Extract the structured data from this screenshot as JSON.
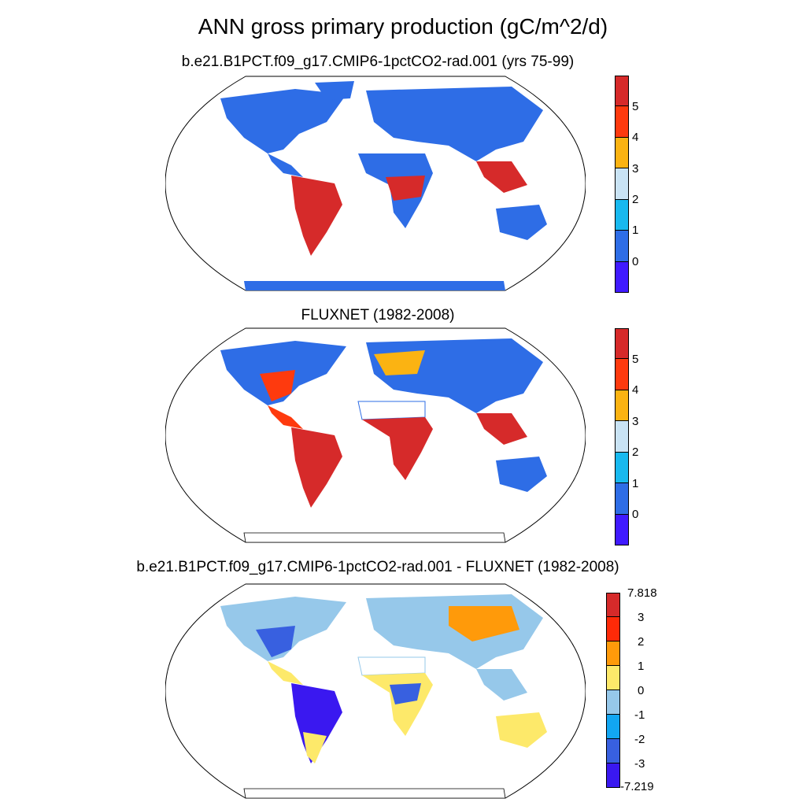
{
  "title": "ANN gross primary production (gC/m^2/d)",
  "panels": [
    {
      "title": "b.e21.B1PCT.f09_g17.CMIP6-1pctCO2-rad.001 (yrs 75-99)",
      "colorbar": {
        "colors": [
          "#d62a2a",
          "#fe3a0e",
          "#fbb312",
          "#c9e3f4",
          "#18b9ef",
          "#2e6de6",
          "#401aff"
        ],
        "labels": [
          "5",
          "4",
          "3",
          "2",
          "1",
          "0"
        ]
      }
    },
    {
      "title": "FLUXNET (1982-2008)",
      "colorbar": {
        "colors": [
          "#d62a2a",
          "#fe3a0e",
          "#fbb312",
          "#c9e3f4",
          "#18b9ef",
          "#2e6de6",
          "#401aff"
        ],
        "labels": [
          "5",
          "4",
          "3",
          "2",
          "1",
          "0"
        ]
      }
    },
    {
      "title": "b.e21.B1PCT.f09_g17.CMIP6-1pctCO2-rad.001 - FLUXNET (1982-2008)",
      "colorbar": {
        "colors": [
          "#d62a2a",
          "#fe2a08",
          "#ff9a0a",
          "#fde96a",
          "#96c8ea",
          "#12a6f2",
          "#3860e0",
          "#3a18f0"
        ],
        "labels": [
          "7.818",
          "3",
          "2",
          "1",
          "0",
          "-1",
          "-2",
          "-3",
          "-7.219"
        ]
      }
    }
  ]
}
